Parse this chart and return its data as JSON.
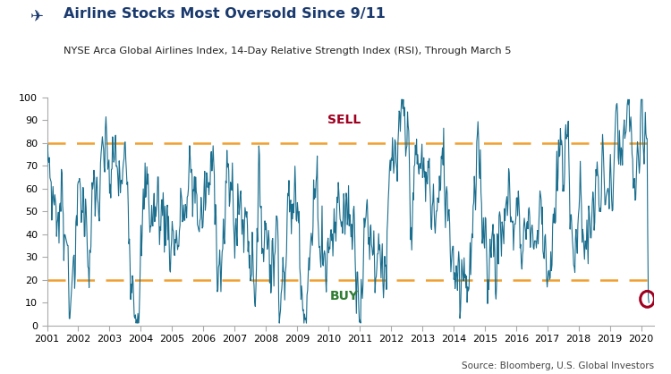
{
  "title": "Airline Stocks Most Oversold Since 9/11",
  "subtitle": "NYSE Arca Global Airlines Index, 14-Day Relative Strength Index (RSI), Through March 5",
  "source": "Source: Bloomberg, U.S. Global Investors",
  "sell_label": "SELL",
  "buy_label": "BUY",
  "sell_level": 80,
  "buy_level": 20,
  "ylim": [
    0,
    100
  ],
  "yticks": [
    0,
    10,
    20,
    30,
    40,
    50,
    60,
    70,
    80,
    90,
    100
  ],
  "line_color": "#1a6e8e",
  "dashed_color": "#f0a030",
  "sell_color": "#a00020",
  "buy_color": "#2e7d32",
  "title_color": "#1a3a6e",
  "circle_color": "#a00020",
  "background_color": "#ffffff",
  "start_year": 2001,
  "end_year": 2020,
  "random_seed": 7
}
